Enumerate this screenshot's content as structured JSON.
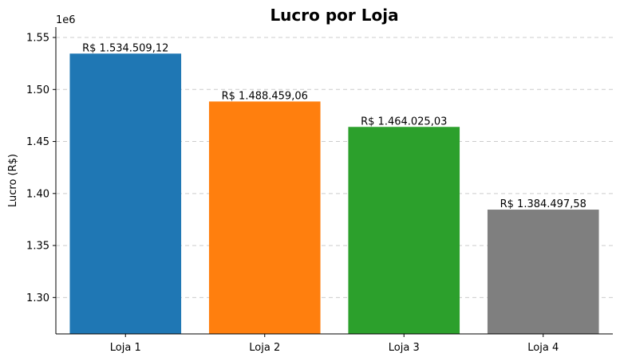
{
  "chart_data": {
    "type": "bar",
    "title": "Lucro por Loja",
    "xlabel": "",
    "ylabel": "Lucro (R$)",
    "offset_label": "1e6",
    "categories": [
      "Loja 1",
      "Loja 2",
      "Loja 3",
      "Loja 4"
    ],
    "values": [
      1534509.12,
      1488459.06,
      1464025.03,
      1384497.58
    ],
    "data_labels": [
      "R$ 1.534.509,12",
      "R$ 1.488.459,06",
      "R$ 1.464.025,03",
      "R$ 1.384.497,58"
    ],
    "colors": [
      "#1f77b4",
      "#ff7f0e",
      "#2ca02c",
      "#7f7f7f"
    ],
    "ylim": [
      1265000,
      1560000
    ],
    "yticks": [
      1300000,
      1350000,
      1400000,
      1450000,
      1500000,
      1550000
    ],
    "ytick_labels": [
      "1.30",
      "1.35",
      "1.40",
      "1.45",
      "1.50",
      "1.55"
    ],
    "grid": "y-dashed",
    "legend": "none"
  }
}
